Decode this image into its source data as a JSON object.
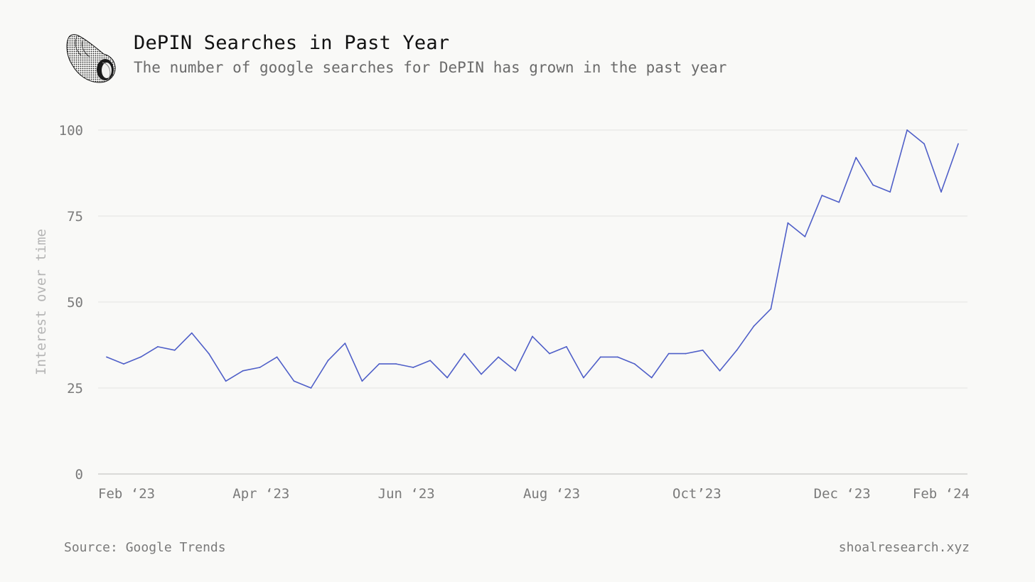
{
  "header": {
    "title": "DePIN Searches in Past Year",
    "subtitle": "The number of google searches for DePIN has grown in the past year"
  },
  "footer": {
    "source": "Source: Google Trends",
    "credit": "shoalresearch.xyz"
  },
  "colors": {
    "line": "#4f5fc8",
    "grid": "#e4e4e2",
    "axis": "#c7c7c5",
    "tick_text": "#7a7a7a",
    "ylabel_text": "#b5b5b5"
  },
  "chart_data": {
    "type": "line",
    "title": "DePIN Searches in Past Year",
    "xlabel": "",
    "ylabel": "Interest over time",
    "ylim": [
      0,
      100
    ],
    "yticks": [
      0,
      25,
      50,
      75,
      100
    ],
    "xtick_labels": [
      "Feb ‘23",
      "Apr ‘23",
      "Jun ‘23",
      "Aug ‘23",
      "Oct’23",
      "Dec ‘23",
      "Feb ‘24"
    ],
    "grid": "horizontal",
    "legend": "none",
    "series": [
      {
        "values": [
          34,
          32,
          34,
          37,
          36,
          41,
          35,
          27,
          30,
          31,
          34,
          27,
          25,
          33,
          38,
          27,
          32,
          32,
          31,
          33,
          28,
          35,
          29,
          34,
          30,
          40,
          35,
          37,
          28,
          34,
          34,
          32,
          28,
          35,
          35,
          36,
          30,
          36,
          43,
          48,
          73,
          69,
          81,
          79,
          92,
          84,
          82,
          100,
          96,
          82,
          96
        ]
      }
    ]
  }
}
